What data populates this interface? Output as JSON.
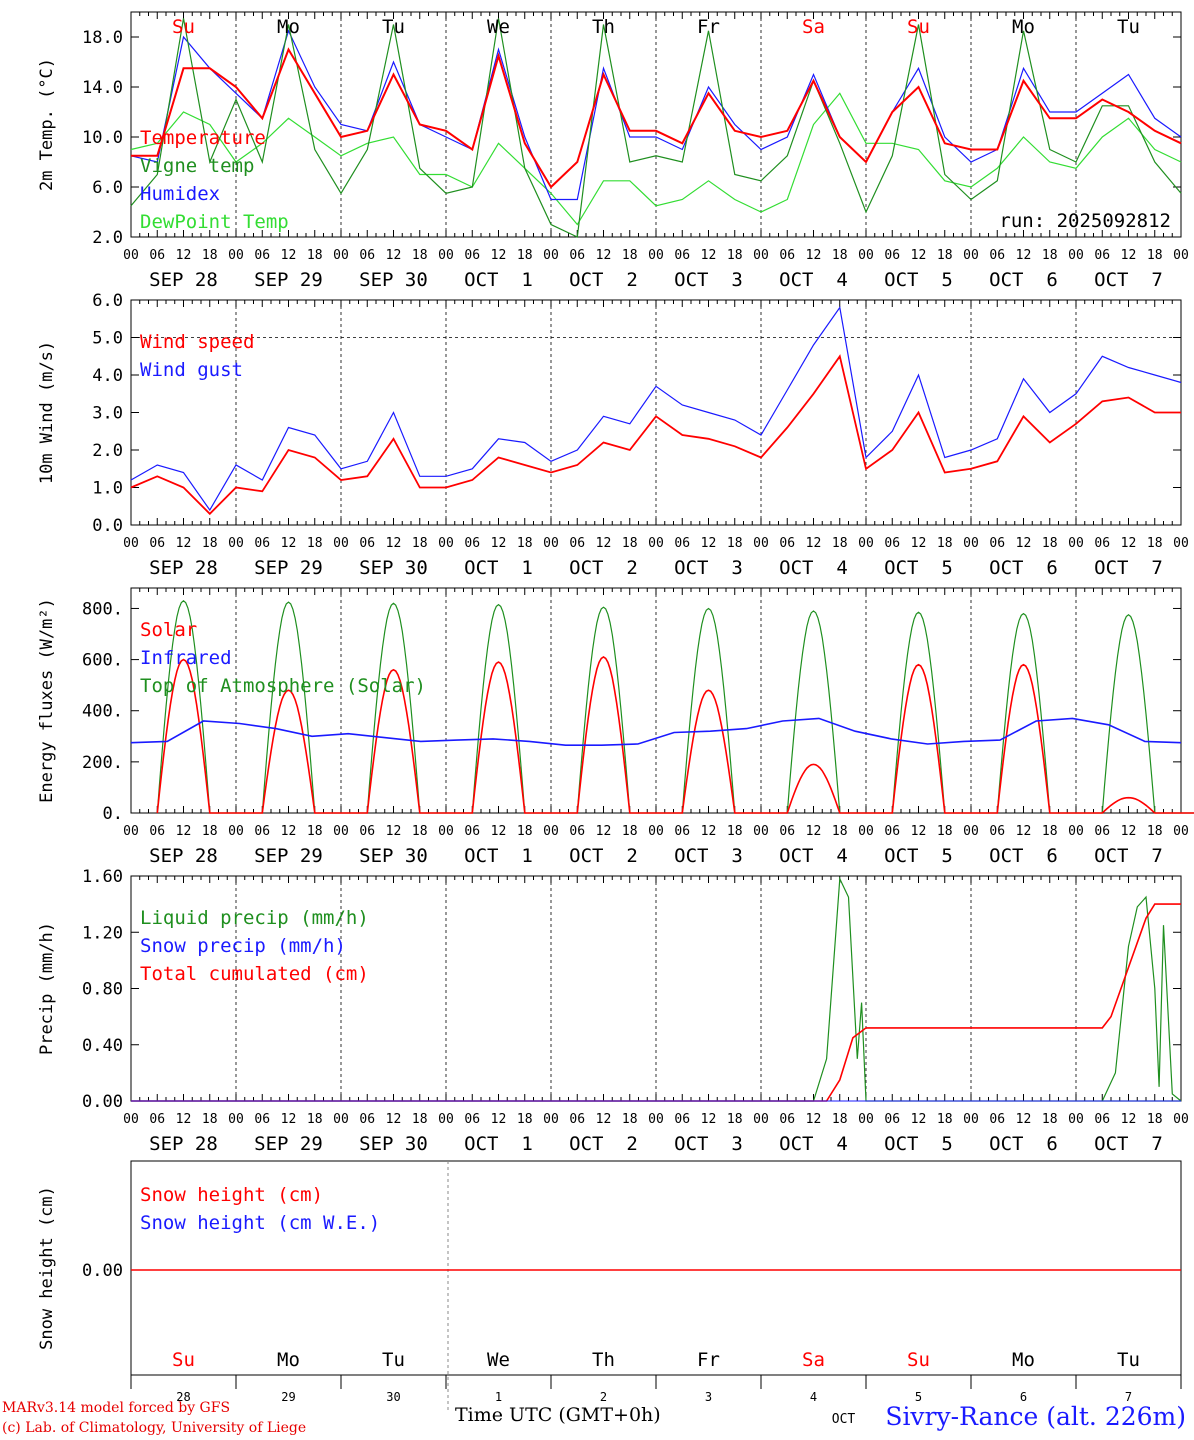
{
  "run_label": "run: 2025092812",
  "footer": {
    "model_line": "MARv3.14 model forced by GFS",
    "credit_line": "(c) Lab. of Climatology, University of Liege",
    "time_axis_label": "Time UTC (GMT+0h)",
    "station": "Sivry-Rance (alt. 226m)"
  },
  "colors": {
    "red": "#ff0000",
    "blue": "#1a1aff",
    "green": "#1f8f1f",
    "lightgreen": "#33dd33",
    "black": "#000000",
    "weekend": "#ff0000"
  },
  "days": [
    "Su",
    "Mo",
    "Tu",
    "We",
    "Th",
    "Fr",
    "Sa",
    "Su",
    "Mo",
    "Tu"
  ],
  "day_colors": [
    "#ff0000",
    "#000000",
    "#000000",
    "#000000",
    "#000000",
    "#000000",
    "#ff0000",
    "#ff0000",
    "#000000",
    "#000000"
  ],
  "date_labels": [
    "SEP 28",
    "SEP 29",
    "SEP 30",
    "OCT  1",
    "OCT  2",
    "OCT  3",
    "OCT  4",
    "OCT  5",
    "OCT  6",
    "OCT  7"
  ],
  "hour_labels": [
    "00",
    "06",
    "12",
    "18"
  ],
  "bottom_day_numbers": [
    "28",
    "29",
    "30",
    "1",
    "2",
    "3",
    "4",
    "5",
    "6",
    "7"
  ],
  "bottom_month": "OCT",
  "chart_data": [
    {
      "type": "line",
      "title": "",
      "xlabel": "",
      "ylabel": "2m Temp. (°C)",
      "ylim": [
        2,
        20
      ],
      "yticks": [
        "2.0",
        "6.0",
        "10.0",
        "14.0",
        "18.0"
      ],
      "x_hours": [
        0,
        6,
        12,
        18,
        24,
        30,
        36,
        42,
        48,
        54,
        60,
        66,
        72,
        78,
        84,
        90,
        96,
        102,
        108,
        114,
        120,
        126,
        132,
        138,
        144,
        150,
        156,
        162,
        168,
        174,
        180,
        186,
        192,
        198,
        204,
        210,
        216,
        222,
        228,
        234,
        240
      ],
      "series": [
        {
          "name": "Temperature",
          "color": "#ff0000",
          "values": [
            8.5,
            8.5,
            15.5,
            15.5,
            14.0,
            11.5,
            17.0,
            13.5,
            10.0,
            10.5,
            15.0,
            11.0,
            10.5,
            9.0,
            16.5,
            9.5,
            6.0,
            8.0,
            15.0,
            10.5,
            10.5,
            9.5,
            13.5,
            10.5,
            10.0,
            10.5,
            14.5,
            10.0,
            8.0,
            12.0,
            14.0,
            9.5,
            9.0,
            9.0,
            14.5,
            11.5,
            11.5,
            13.0,
            12.0,
            10.5,
            9.5
          ]
        },
        {
          "name": "Vigne temp",
          "color": "#1f8f1f",
          "values": [
            4.5,
            7.0,
            19.5,
            8.0,
            13.0,
            8.0,
            19.0,
            9.0,
            5.5,
            9.0,
            19.0,
            7.5,
            5.5,
            6.0,
            19.5,
            7.5,
            3.0,
            2.0,
            19.0,
            8.0,
            8.5,
            8.0,
            18.5,
            7.0,
            6.5,
            8.5,
            14.5,
            9.5,
            4.0,
            8.5,
            19.0,
            7.0,
            5.0,
            6.5,
            18.5,
            9.0,
            8.0,
            12.5,
            12.5,
            8.0,
            5.5
          ]
        },
        {
          "name": "Humidex",
          "color": "#1a1aff",
          "values": [
            8.5,
            8.0,
            18.0,
            15.5,
            13.5,
            11.5,
            18.5,
            14.0,
            11.0,
            10.5,
            16.0,
            11.0,
            10.0,
            9.0,
            17.0,
            10.0,
            5.0,
            5.0,
            15.5,
            10.0,
            10.0,
            9.0,
            14.0,
            11.0,
            9.0,
            10.0,
            15.0,
            10.0,
            8.0,
            12.0,
            15.5,
            10.0,
            8.0,
            9.0,
            15.5,
            12.0,
            12.0,
            13.5,
            15.0,
            11.5,
            10.0
          ]
        },
        {
          "name": "DewPoint Temp",
          "color": "#33dd33",
          "values": [
            9.0,
            9.5,
            12.0,
            11.0,
            8.0,
            9.5,
            11.5,
            10.0,
            8.5,
            9.5,
            10.0,
            7.0,
            7.0,
            6.0,
            9.5,
            7.5,
            5.5,
            3.0,
            6.5,
            6.5,
            4.5,
            5.0,
            6.5,
            5.0,
            4.0,
            5.0,
            11.0,
            13.5,
            9.5,
            9.5,
            9.0,
            6.5,
            6.0,
            7.5,
            10.0,
            8.0,
            7.5,
            10.0,
            11.5,
            9.0,
            8.0
          ]
        }
      ]
    },
    {
      "type": "line",
      "title": "",
      "xlabel": "",
      "ylabel": "10m Wind (m/s)",
      "ylim": [
        0,
        6
      ],
      "yticks": [
        "0.0",
        "1.0",
        "2.0",
        "3.0",
        "4.0",
        "5.0",
        "6.0"
      ],
      "reference_line": 5.0,
      "x_hours": [
        0,
        6,
        12,
        18,
        24,
        30,
        36,
        42,
        48,
        54,
        60,
        66,
        72,
        78,
        84,
        90,
        96,
        102,
        108,
        114,
        120,
        126,
        132,
        138,
        144,
        150,
        156,
        162,
        168,
        174,
        180,
        186,
        192,
        198,
        204,
        210,
        216,
        222,
        228,
        234,
        240
      ],
      "series": [
        {
          "name": "Wind speed",
          "color": "#ff0000",
          "values": [
            1.0,
            1.3,
            1.0,
            0.3,
            1.0,
            0.9,
            2.0,
            1.8,
            1.2,
            1.3,
            2.3,
            1.0,
            1.0,
            1.2,
            1.8,
            1.6,
            1.4,
            1.6,
            2.2,
            2.0,
            2.9,
            2.4,
            2.3,
            2.1,
            1.8,
            2.6,
            3.5,
            4.5,
            1.5,
            2.0,
            3.0,
            1.4,
            1.5,
            1.7,
            2.9,
            2.2,
            2.7,
            3.3,
            3.4,
            3.0,
            3.0
          ]
        },
        {
          "name": "Wind gust",
          "color": "#1a1aff",
          "values": [
            1.2,
            1.6,
            1.4,
            0.4,
            1.6,
            1.2,
            2.6,
            2.4,
            1.5,
            1.7,
            3.0,
            1.3,
            1.3,
            1.5,
            2.3,
            2.2,
            1.7,
            2.0,
            2.9,
            2.7,
            3.7,
            3.2,
            3.0,
            2.8,
            2.4,
            3.6,
            4.8,
            5.8,
            1.8,
            2.5,
            4.0,
            1.8,
            2.0,
            2.3,
            3.9,
            3.0,
            3.5,
            4.5,
            4.2,
            4.0,
            3.8
          ]
        }
      ]
    },
    {
      "type": "line",
      "title": "",
      "xlabel": "",
      "ylabel": "Energy fluxes (W/m²)",
      "ylim": [
        0,
        880
      ],
      "yticks": [
        "0.",
        "200.",
        "400.",
        "600.",
        "800."
      ],
      "series": [
        {
          "name": "Solar",
          "color": "#ff0000",
          "daily_peaks": [
            600,
            480,
            560,
            590,
            610,
            480,
            190,
            580,
            580,
            60
          ]
        },
        {
          "name": "Infrared",
          "color": "#1a1aff",
          "values": [
            275,
            280,
            360,
            350,
            330,
            300,
            310,
            295,
            280,
            285,
            290,
            280,
            265,
            265,
            270,
            315,
            320,
            330,
            360,
            370,
            320,
            290,
            270,
            280,
            285,
            360,
            370,
            345,
            280,
            275
          ]
        },
        {
          "name": "Top of Atmosphere (Solar)",
          "color": "#1f8f1f",
          "daily_peaks": [
            830,
            825,
            820,
            815,
            805,
            800,
            790,
            785,
            780,
            775
          ]
        }
      ]
    },
    {
      "type": "line",
      "title": "",
      "xlabel": "",
      "ylabel": "Precip (mm/h)",
      "ylim": [
        0,
        1.6
      ],
      "yticks": [
        "0.00",
        "0.40",
        "0.80",
        "1.20",
        "1.60"
      ],
      "series": [
        {
          "name": "Liquid precip (mm/h)",
          "color": "#1f8f1f",
          "points": [
            [
              156,
              0
            ],
            [
              159,
              0.3
            ],
            [
              162,
              1.58
            ],
            [
              164,
              1.45
            ],
            [
              166,
              0.3
            ],
            [
              167,
              0.7
            ],
            [
              168,
              0
            ],
            [
              240,
              0
            ]
          ],
          "points_day7": [
            [
              222,
              0
            ],
            [
              225,
              0.2
            ],
            [
              228,
              1.1
            ],
            [
              230,
              1.38
            ],
            [
              232,
              1.45
            ],
            [
              234,
              0.8
            ],
            [
              235,
              0.1
            ],
            [
              236,
              1.25
            ],
            [
              238,
              0.05
            ],
            [
              240,
              0
            ]
          ]
        },
        {
          "name": "Snow precip (mm/h)",
          "color": "#1a1aff",
          "values": [
            0
          ]
        },
        {
          "name": "Total cumulated (cm)",
          "color": "#ff0000",
          "points": [
            [
              0,
              0
            ],
            [
              159,
              0
            ],
            [
              162,
              0.15
            ],
            [
              165,
              0.45
            ],
            [
              168,
              0.52
            ],
            [
              222,
              0.52
            ],
            [
              224,
              0.6
            ],
            [
              228,
              0.95
            ],
            [
              232,
              1.3
            ],
            [
              234,
              1.4
            ],
            [
              240,
              1.4
            ]
          ]
        }
      ]
    },
    {
      "type": "line",
      "title": "",
      "xlabel": "Time UTC (GMT+0h)",
      "ylabel": "Snow height (cm)",
      "yticks": [
        "0.00"
      ],
      "series": [
        {
          "name": "Snow height (cm)",
          "color": "#ff0000",
          "values": [
            0.0
          ]
        },
        {
          "name": "Snow height (cm W.E.)",
          "color": "#1a1aff",
          "values": [
            0.0
          ]
        }
      ]
    }
  ]
}
